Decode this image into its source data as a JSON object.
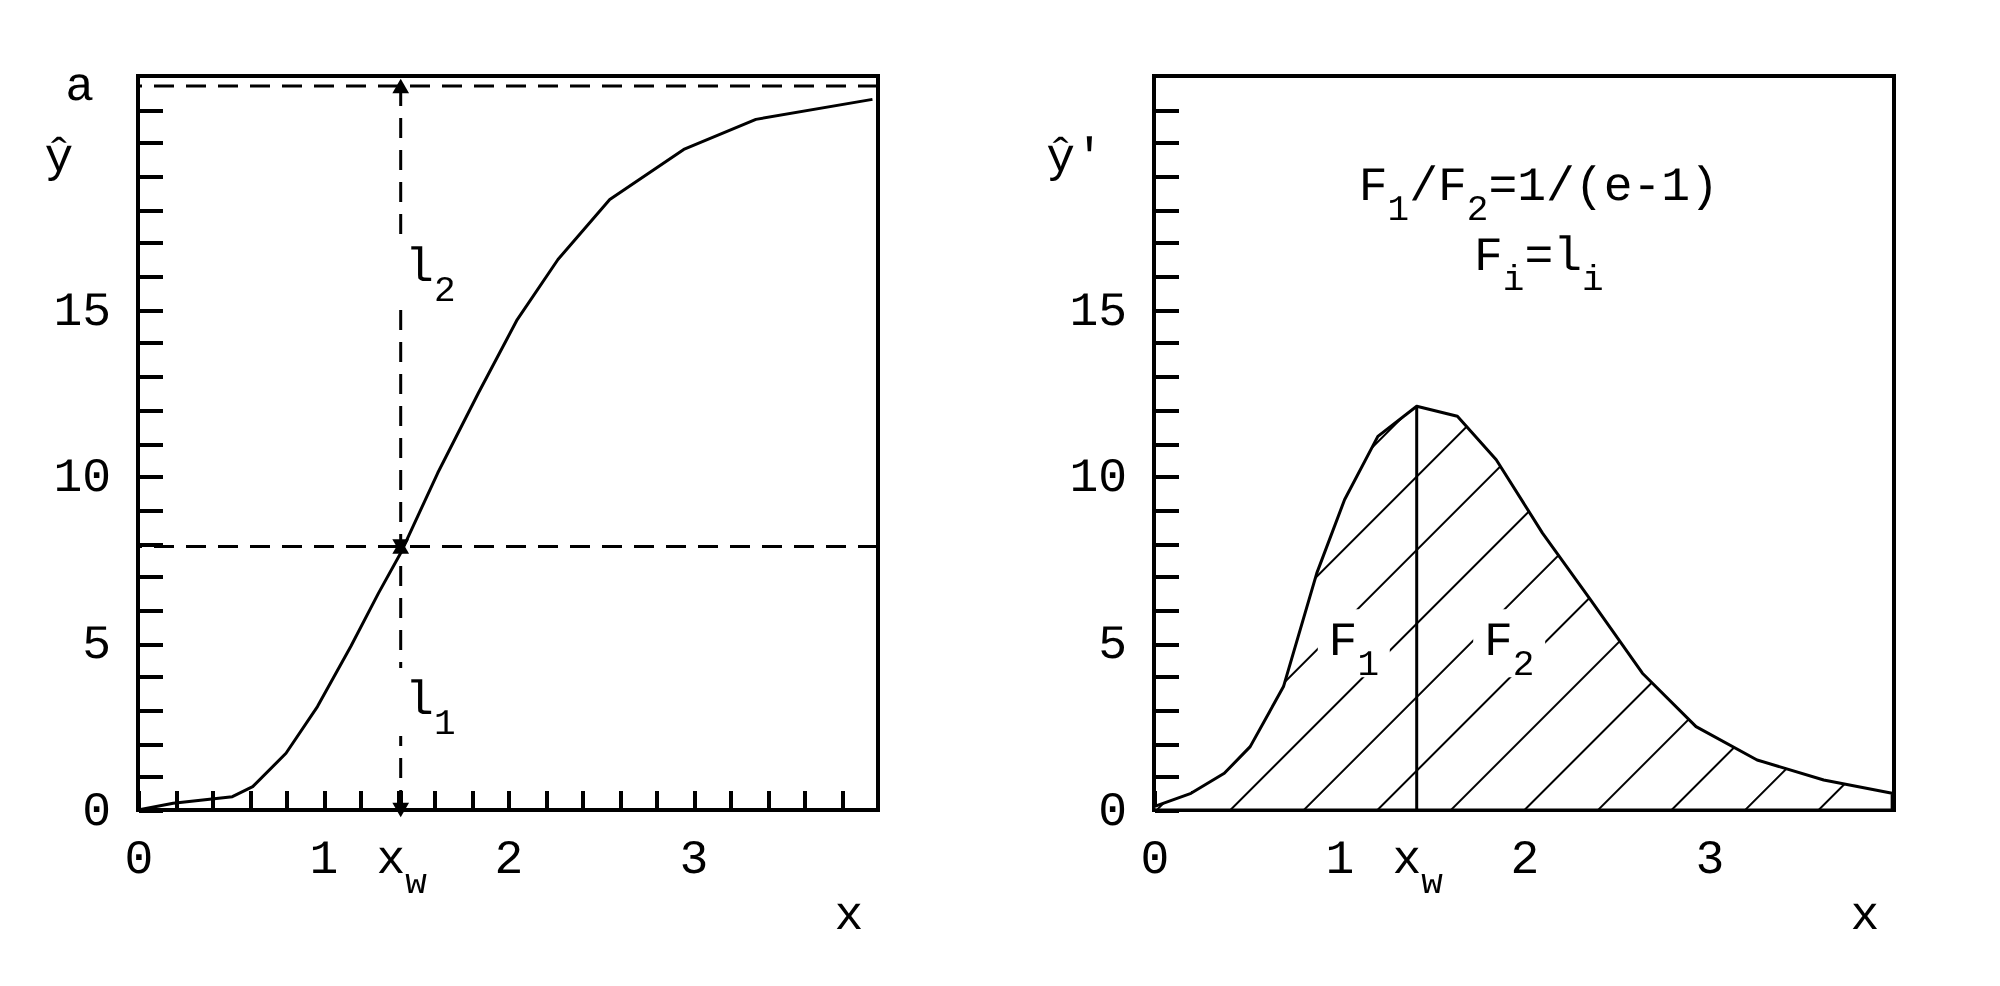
{
  "chart_data": [
    {
      "type": "line",
      "xlabel": "x",
      "ylabel": "ŷ",
      "xlim": [
        0,
        4
      ],
      "ylim": [
        0,
        22
      ],
      "xticks": [
        0,
        {
          "value": 0.2,
          "label": null
        },
        {
          "value": 0.4,
          "label": null
        },
        {
          "value": 0.6,
          "label": null
        },
        {
          "value": 0.8,
          "label": null
        },
        1,
        {
          "value": 1.2,
          "label": null
        },
        {
          "value": 1.4,
          "label": null
        },
        {
          "value": 1.42,
          "label": "x$_{w}$"
        },
        {
          "value": 1.6,
          "label": null
        },
        {
          "value": 1.8,
          "label": null
        },
        2,
        {
          "value": 2.2,
          "label": null
        },
        {
          "value": 2.4,
          "label": null
        },
        {
          "value": 2.6,
          "label": null
        },
        {
          "value": 2.8,
          "label": null
        },
        3,
        {
          "value": 3.2,
          "label": null
        },
        {
          "value": 3.4,
          "label": null
        },
        {
          "value": 3.6,
          "label": null
        },
        {
          "value": 3.8,
          "label": null
        }
      ],
      "yticks": [
        0,
        {
          "value": 1,
          "label": null
        },
        {
          "value": 2,
          "label": null
        },
        {
          "value": 3,
          "label": null
        },
        {
          "value": 4,
          "label": null
        },
        5,
        {
          "value": 6,
          "label": null
        },
        {
          "value": 7,
          "label": null
        },
        {
          "value": 8,
          "label": null
        },
        {
          "value": 9,
          "label": null
        },
        10,
        {
          "value": 11,
          "label": null
        },
        {
          "value": 12,
          "label": null
        },
        {
          "value": 13,
          "label": null
        },
        {
          "value": 14,
          "label": null
        },
        15,
        {
          "value": 16,
          "label": null
        },
        {
          "value": 17,
          "label": null
        },
        {
          "value": 18,
          "label": null
        },
        {
          "value": 19,
          "label": null
        },
        {
          "value": 20,
          "label": null
        },
        {
          "value": 21,
          "label": null
        }
      ],
      "series": [
        {
          "color": "#000000",
          "x": [
            0,
            0.19,
            0.51,
            0.62,
            0.8,
            0.97,
            1.15,
            1.3,
            1.42,
            1.62,
            1.84,
            2.05,
            2.27,
            2.55,
            2.95,
            3.34,
            3.97
          ],
          "values": [
            0,
            0.2,
            0.4,
            0.7,
            1.7,
            3.1,
            4.9,
            6.5,
            7.7,
            10.1,
            12.5,
            14.7,
            16.5,
            18.3,
            19.8,
            20.7,
            21.3
          ]
        }
      ],
      "ref_lines": [
        {
          "axis": "y",
          "value": 21.7,
          "label": "a",
          "line_style": "dashed"
        },
        {
          "axis": "y",
          "value": 7.9,
          "line_style": "dashed"
        },
        {
          "axis": "x",
          "value": 1.42,
          "line_style": "dashed"
        }
      ],
      "annotations": [
        "l$_{2}$",
        "l$_{1}$"
      ],
      "grid": false,
      "marker": "none",
      "line_style": "solid"
    },
    {
      "type": "area",
      "xlabel": "x",
      "ylabel": "ŷ'",
      "xlim": [
        0,
        4
      ],
      "ylim": [
        0,
        22
      ],
      "xticks": [
        0,
        {
          "value": 0.2,
          "label": null
        },
        {
          "value": 0.4,
          "label": null
        },
        {
          "value": 0.6,
          "label": null
        },
        {
          "value": 0.8,
          "label": null
        },
        1,
        {
          "value": 1.2,
          "label": null
        },
        {
          "value": 1.4,
          "label": null
        },
        {
          "value": 1.42,
          "label": "x$_{w}$"
        },
        {
          "value": 1.6,
          "label": null
        },
        {
          "value": 1.8,
          "label": null
        },
        2,
        {
          "value": 2.2,
          "label": null
        },
        {
          "value": 2.4,
          "label": null
        },
        {
          "value": 2.6,
          "label": null
        },
        {
          "value": 2.8,
          "label": null
        },
        3,
        {
          "value": 3.2,
          "label": null
        },
        {
          "value": 3.4,
          "label": null
        },
        {
          "value": 3.6,
          "label": null
        },
        {
          "value": 3.8,
          "label": null
        }
      ],
      "yticks": [
        0,
        {
          "value": 1,
          "label": null
        },
        {
          "value": 2,
          "label": null
        },
        {
          "value": 3,
          "label": null
        },
        {
          "value": 4,
          "label": null
        },
        5,
        {
          "value": 6,
          "label": null
        },
        {
          "value": 7,
          "label": null
        },
        {
          "value": 8,
          "label": null
        },
        {
          "value": 9,
          "label": null
        },
        10,
        {
          "value": 11,
          "label": null
        },
        {
          "value": 12,
          "label": null
        },
        {
          "value": 13,
          "label": null
        },
        {
          "value": 14,
          "label": null
        },
        15,
        {
          "value": 16,
          "label": null
        },
        {
          "value": 17,
          "label": null
        },
        {
          "value": 18,
          "label": null
        },
        {
          "value": 19,
          "label": null
        },
        {
          "value": 20,
          "label": null
        },
        {
          "value": 21,
          "label": null
        }
      ],
      "series": [
        {
          "color": "#000000",
          "x": [
            0,
            0.2,
            0.38,
            0.52,
            0.7,
            0.88,
            1.03,
            1.21,
            1.42,
            1.64,
            1.85,
            2.1,
            2.36,
            2.64,
            2.93,
            3.26,
            3.62,
            3.99
          ],
          "values": [
            0.1,
            0.5,
            1.1,
            1.9,
            3.7,
            7.1,
            9.3,
            11.2,
            12.1,
            11.8,
            10.5,
            8.3,
            6.3,
            4.1,
            2.5,
            1.5,
            0.9,
            0.5
          ]
        }
      ],
      "ref_lines": [
        {
          "axis": "x",
          "value": 1.42
        }
      ],
      "annotations": [
        "F$_{1}$/F$_{2}$=1/(e-1)",
        "F$_{i}$=l$_{i}$",
        "F$_{1}$",
        "F$_{2}$"
      ],
      "grid": false,
      "marker": "none"
    }
  ]
}
